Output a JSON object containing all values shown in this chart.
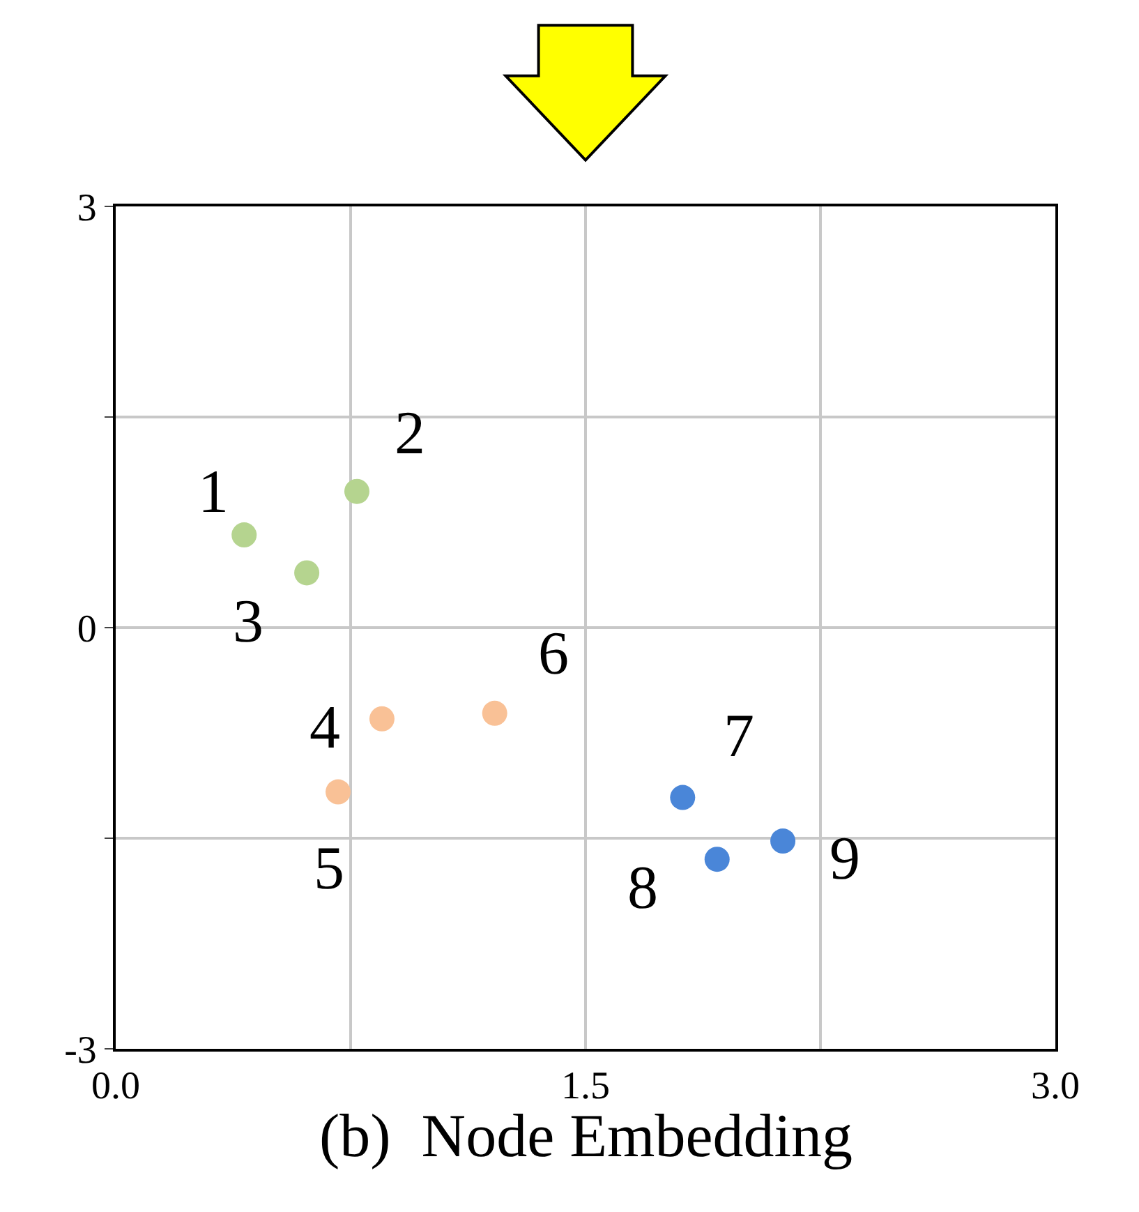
{
  "chart_data": {
    "type": "scatter",
    "title": "(b)  Node Embedding",
    "series": [
      {
        "color": "#b5d48f",
        "x": [
          0.41,
          0.77,
          0.61
        ],
        "values": [
          0.66,
          0.97,
          0.39
        ]
      },
      {
        "color": "#f9c196",
        "x": [
          0.85,
          0.71,
          1.21
        ],
        "values": [
          -0.65,
          -1.17,
          -0.61
        ]
      },
      {
        "color": "#4a86d8",
        "x": [
          1.81,
          1.92,
          2.13
        ],
        "values": [
          -1.21,
          -1.65,
          -1.52
        ]
      }
    ],
    "annotations": [
      {
        "text": "1",
        "x": 0.41,
        "y": 0.66
      },
      {
        "text": "2",
        "x": 0.77,
        "y": 0.97
      },
      {
        "text": "3",
        "x": 0.61,
        "y": 0.39
      },
      {
        "text": "4",
        "x": 0.85,
        "y": -0.65
      },
      {
        "text": "5",
        "x": 0.71,
        "y": -1.17
      },
      {
        "text": "6",
        "x": 1.21,
        "y": -0.61
      },
      {
        "text": "7",
        "x": 1.81,
        "y": -1.21
      },
      {
        "text": "8",
        "x": 1.92,
        "y": -1.65
      },
      {
        "text": "9",
        "x": 2.13,
        "y": -1.52
      }
    ],
    "xlim": [
      0,
      3
    ],
    "ylim": [
      -3,
      3
    ],
    "xticks": [
      {
        "value": 0,
        "label": "0.0"
      },
      {
        "value": 0.75,
        "label": null
      },
      {
        "value": 1.5,
        "label": "1.5"
      },
      {
        "value": 2.25,
        "label": null
      },
      {
        "value": 3,
        "label": "3.0"
      }
    ],
    "yticks": [
      -3,
      {
        "value": -1.5,
        "label": null
      },
      0,
      {
        "value": 1.5,
        "label": null
      },
      3
    ],
    "grid": true,
    "marker": "circle"
  }
}
